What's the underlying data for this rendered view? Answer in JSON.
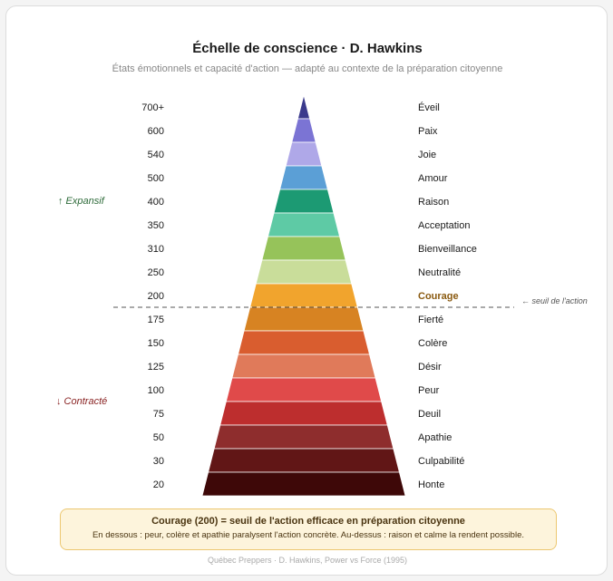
{
  "header": {
    "title": "Échelle de conscience · D. Hawkins",
    "subtitle": "États émotionnels et capacité d'action — adapté au contexte de la préparation citoyenne"
  },
  "chart_data": {
    "type": "pyramid",
    "levels": [
      {
        "value": "700+",
        "label": "Éveil",
        "color": "#3b3a8c"
      },
      {
        "value": "600",
        "label": "Paix",
        "color": "#7b74d4"
      },
      {
        "value": "540",
        "label": "Joie",
        "color": "#afa8e8"
      },
      {
        "value": "500",
        "label": "Amour",
        "color": "#5b9fd6"
      },
      {
        "value": "400",
        "label": "Raison",
        "color": "#1c9a73"
      },
      {
        "value": "350",
        "label": "Acceptation",
        "color": "#5ecaa5"
      },
      {
        "value": "310",
        "label": "Bienveillance",
        "color": "#96c35a"
      },
      {
        "value": "250",
        "label": "Neutralité",
        "color": "#c9dd9a"
      },
      {
        "value": "200",
        "label": "Courage",
        "color": "#f1a42d",
        "highlight": true
      },
      {
        "value": "175",
        "label": "Fierté",
        "color": "#d78322"
      },
      {
        "value": "150",
        "label": "Colère",
        "color": "#d95d2f"
      },
      {
        "value": "125",
        "label": "Désir",
        "color": "#e07a5a"
      },
      {
        "value": "100",
        "label": "Peur",
        "color": "#e04a4a"
      },
      {
        "value": "75",
        "label": "Deuil",
        "color": "#bd2e2e"
      },
      {
        "value": "50",
        "label": "Apathie",
        "color": "#8e2d2d"
      },
      {
        "value": "30",
        "label": "Culpabilité",
        "color": "#611616"
      },
      {
        "value": "20",
        "label": "Honte",
        "color": "#3e0808"
      }
    ],
    "threshold_after_value": "200",
    "threshold_label": "← seuil de l'action",
    "upper_side_label": "↑ Expansif",
    "lower_side_label": "↓ Contracté",
    "colors": {
      "label_text": "#1a1a1a",
      "highlight_text": "#8a5a10",
      "expansive": "#2e6b3a",
      "contracted": "#8a2424",
      "threshold_line": "#555555"
    }
  },
  "callout": {
    "title": "Courage (200) = seuil de l'action efficace en préparation citoyenne",
    "body": "En dessous : peur, colère et apathie paralysent l'action concrète. Au-dessus : raison et calme la rendent possible."
  },
  "footer": {
    "text": "Québec Preppers · D. Hawkins, Power vs Force (1995)"
  }
}
